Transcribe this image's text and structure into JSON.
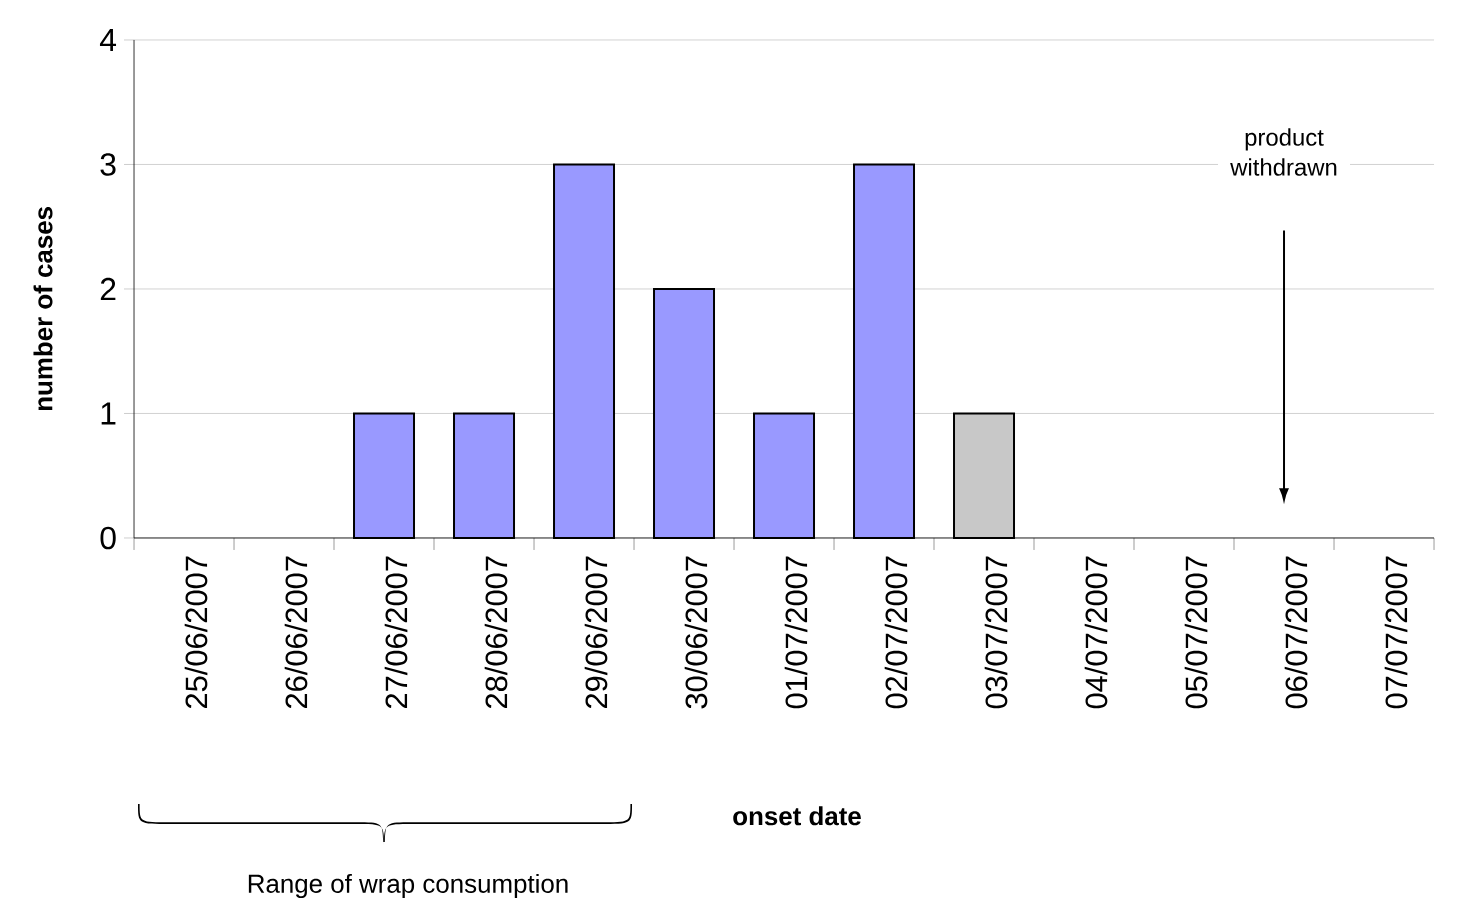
{
  "chart_data": {
    "type": "bar",
    "xlabel": "onset date",
    "ylabel": "number of cases",
    "categories": [
      "25/06/2007",
      "26/06/2007",
      "27/06/2007",
      "28/06/2007",
      "29/06/2007",
      "30/06/2007",
      "01/07/2007",
      "02/07/2007",
      "03/07/2007",
      "04/07/2007",
      "05/07/2007",
      "06/07/2007",
      "07/07/2007"
    ],
    "values": [
      0,
      0,
      1,
      1,
      3,
      2,
      1,
      3,
      1,
      0,
      0,
      0,
      0
    ],
    "colors": [
      "#9999ff",
      "#9999ff",
      "#9999ff",
      "#9999ff",
      "#9999ff",
      "#9999ff",
      "#9999ff",
      "#9999ff",
      "#c8c8c8",
      "#9999ff",
      "#9999ff",
      "#9999ff",
      "#9999ff"
    ],
    "ylim": [
      0,
      4
    ],
    "yticks": [
      0,
      1,
      2,
      3,
      4
    ],
    "grid": "y",
    "annotations": [
      "product withdrawn",
      "Range of wrap consumption"
    ]
  }
}
